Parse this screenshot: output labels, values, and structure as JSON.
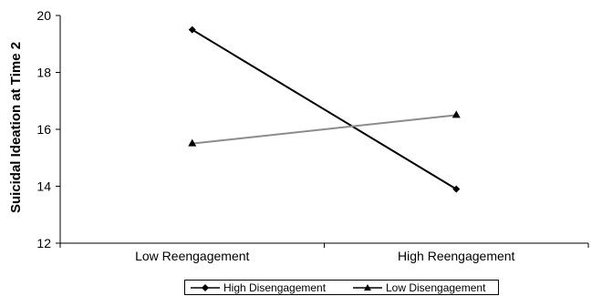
{
  "chart_data": {
    "type": "line",
    "title": "",
    "xlabel": "",
    "ylabel": "Suicidal Ideation at Time 2",
    "categories": [
      "Low Reengagement",
      "High Reengagement"
    ],
    "ylim": [
      12,
      20
    ],
    "yticks": [
      "12",
      "14",
      "16",
      "18",
      "20"
    ],
    "grid": false,
    "legend_position": "bottom",
    "series": [
      {
        "name": "High Disengagement",
        "values": [
          19.5,
          13.9
        ],
        "color": "#000000",
        "marker": "diamond"
      },
      {
        "name": "Low Disengagement",
        "values": [
          15.5,
          16.5
        ],
        "color": "#8c8c8c",
        "marker": "triangle"
      }
    ]
  }
}
